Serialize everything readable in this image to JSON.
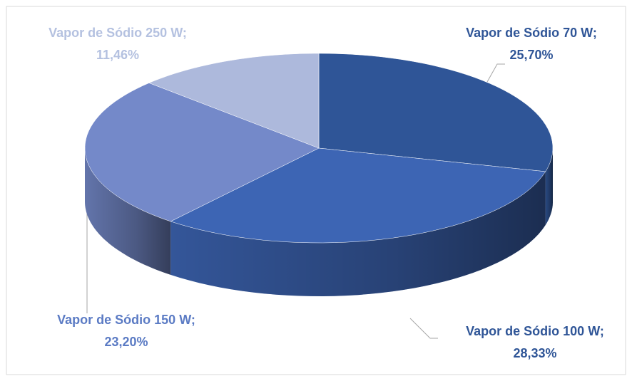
{
  "chart_data": {
    "type": "pie",
    "categories": [
      "Vapor de Sódio 70 W;",
      "Vapor de Sódio 100 W;",
      "Vapor de Sódio 150 W;",
      "Vapor de Sódio 250 W;"
    ],
    "values": [
      25.7,
      28.33,
      23.2,
      11.46
    ],
    "value_labels": [
      "25,70%",
      "28,33%",
      "23,20%",
      "11,46%"
    ],
    "colors": [
      "#2f5597",
      "#3d65b4",
      "#7489c9",
      "#adb9dc"
    ],
    "label_colors": [
      "#2f5597",
      "#2f5597",
      "#5b7bc4",
      "#b4c1e0"
    ]
  }
}
